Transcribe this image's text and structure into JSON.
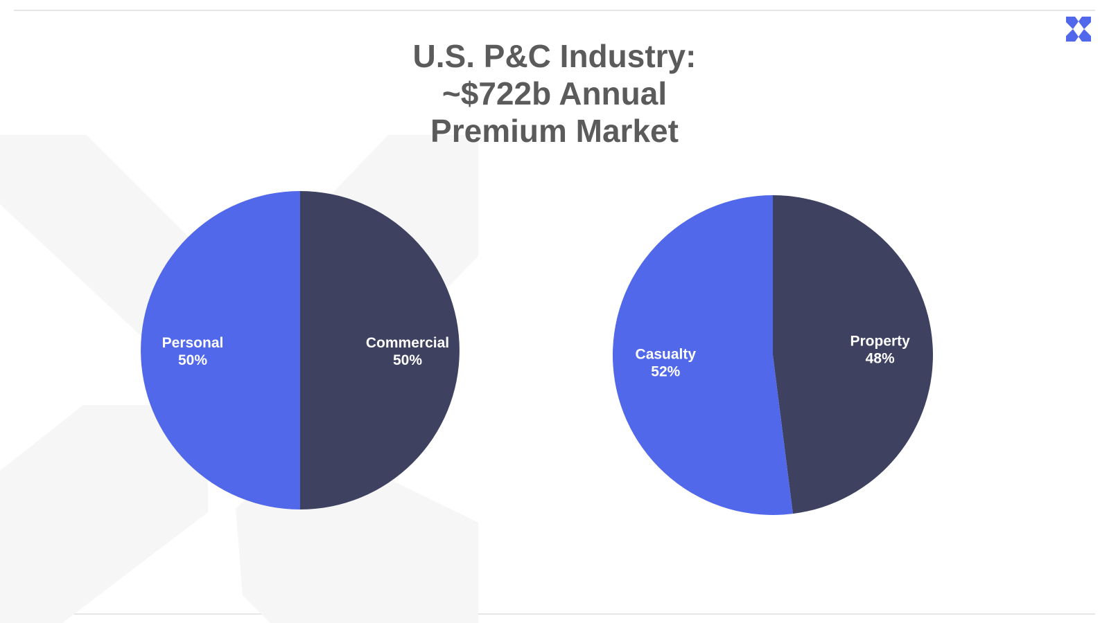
{
  "title_lines": [
    "U.S. P&C Industry:",
    "~$722b Annual",
    "Premium Market"
  ],
  "colors": {
    "accent": "#5168EA",
    "dark": "#3E4260",
    "title": "#5b5b5b",
    "background_mark": "#f6f6f6"
  },
  "logo_icon": "x-logo-icon",
  "chart_data": [
    {
      "type": "pie",
      "title": "",
      "slices": [
        {
          "label": "Commercial",
          "value": 50,
          "value_label": "50%",
          "color": "#3E4260"
        },
        {
          "label": "Personal",
          "value": 50,
          "value_label": "50%",
          "color": "#5168EA"
        }
      ]
    },
    {
      "type": "pie",
      "title": "",
      "slices": [
        {
          "label": "Property",
          "value": 48,
          "value_label": "48%",
          "color": "#3E4260"
        },
        {
          "label": "Casualty",
          "value": 52,
          "value_label": "52%",
          "color": "#5168EA"
        }
      ]
    }
  ]
}
